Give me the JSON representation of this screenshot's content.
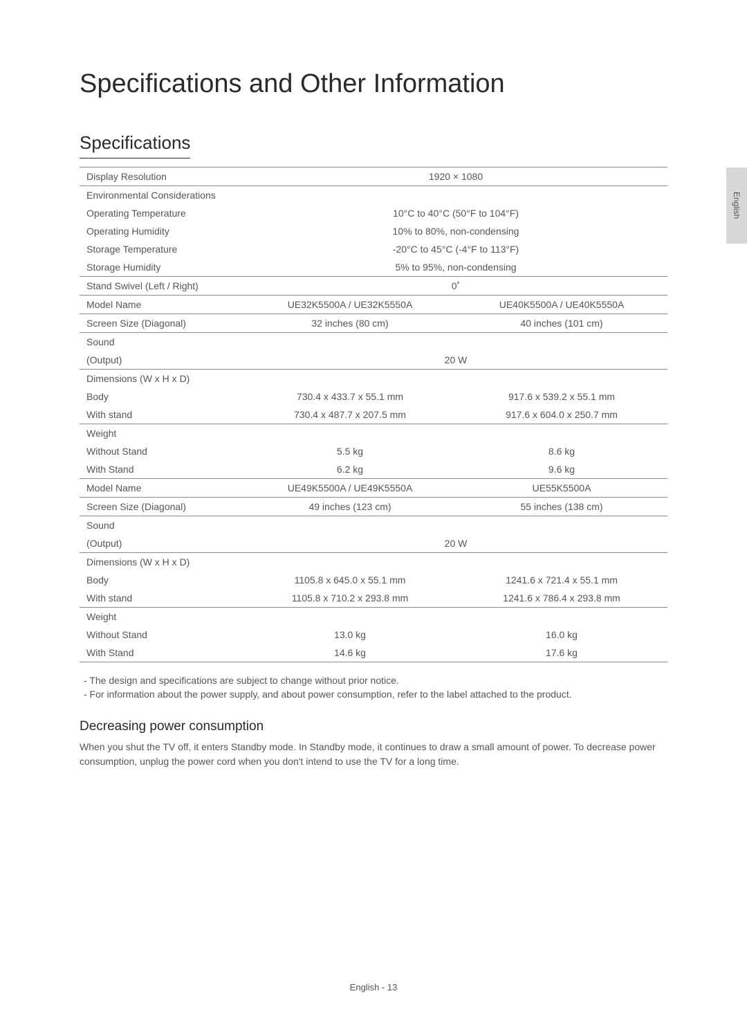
{
  "mainTitle": "Specifications and Other Information",
  "sectionTitle": "Specifications",
  "sideTab": "English",
  "table": {
    "displayResolution": {
      "label": "Display Resolution",
      "value": "1920 × 1080"
    },
    "envConsiderations": {
      "label": "Environmental Considerations"
    },
    "opTemp": {
      "label": "Operating Temperature",
      "value": "10°C to 40°C (50°F to 104°F)"
    },
    "opHumidity": {
      "label": "Operating Humidity",
      "value": "10% to 80%, non-condensing"
    },
    "storTemp": {
      "label": "Storage Temperature",
      "value": "-20°C to 45°C (-4°F to 113°F)"
    },
    "storHumidity": {
      "label": "Storage Humidity",
      "value": "5% to 95%, non-condensing"
    },
    "standSwivel": {
      "label": "Stand Swivel (Left / Right)",
      "value": "0˚"
    },
    "group1": {
      "modelName": {
        "label": "Model Name",
        "val1": "UE32K5500A / UE32K5550A",
        "val2": "UE40K5500A / UE40K5550A"
      },
      "screenSize": {
        "label": "Screen Size (Diagonal)",
        "val1": "32 inches (80 cm)",
        "val2": "40 inches (101 cm)"
      },
      "sound": {
        "label": "Sound"
      },
      "output": {
        "label": "(Output)",
        "value": "20 W"
      },
      "dimensions": {
        "label": "Dimensions (W x H x D)"
      },
      "body": {
        "label": "Body",
        "val1": "730.4 x 433.7 x 55.1 mm",
        "val2": "917.6 x 539.2 x 55.1 mm"
      },
      "withStand": {
        "label": "With stand",
        "val1": "730.4 x 487.7 x 207.5 mm",
        "val2": "917.6 x 604.0 x 250.7 mm"
      },
      "weight": {
        "label": "Weight"
      },
      "withoutStandW": {
        "label": "Without Stand",
        "val1": "5.5 kg",
        "val2": "8.6 kg"
      },
      "withStandW": {
        "label": "With Stand",
        "val1": "6.2 kg",
        "val2": "9.6 kg"
      }
    },
    "group2": {
      "modelName": {
        "label": "Model Name",
        "val1": "UE49K5500A / UE49K5550A",
        "val2": "UE55K5500A"
      },
      "screenSize": {
        "label": "Screen Size (Diagonal)",
        "val1": "49 inches (123 cm)",
        "val2": "55 inches (138 cm)"
      },
      "sound": {
        "label": "Sound"
      },
      "output": {
        "label": "(Output)",
        "value": "20 W"
      },
      "dimensions": {
        "label": "Dimensions (W x H x D)"
      },
      "body": {
        "label": "Body",
        "val1": "1105.8 x 645.0 x 55.1 mm",
        "val2": "1241.6 x 721.4 x 55.1 mm"
      },
      "withStand": {
        "label": "With stand",
        "val1": "1105.8 x 710.2 x 293.8 mm",
        "val2": "1241.6 x 786.4 x 293.8 mm"
      },
      "weight": {
        "label": "Weight"
      },
      "withoutStandW": {
        "label": "Without Stand",
        "val1": "13.0 kg",
        "val2": "16.0 kg"
      },
      "withStandW": {
        "label": "With Stand",
        "val1": "14.6 kg",
        "val2": "17.6 kg"
      }
    }
  },
  "notes": {
    "note1": "-   The design and specifications are subject to change without prior notice.",
    "note2": "-   For information about the power supply, and about power consumption, refer to the label attached to the product."
  },
  "subsection": {
    "title": "Decreasing power consumption",
    "text": "When you shut the TV off, it enters Standby mode. In Standby mode, it continues to draw a small amount of power. To decrease power consumption, unplug the power cord when you don't intend to use the TV for a long time."
  },
  "footer": "English - 13"
}
